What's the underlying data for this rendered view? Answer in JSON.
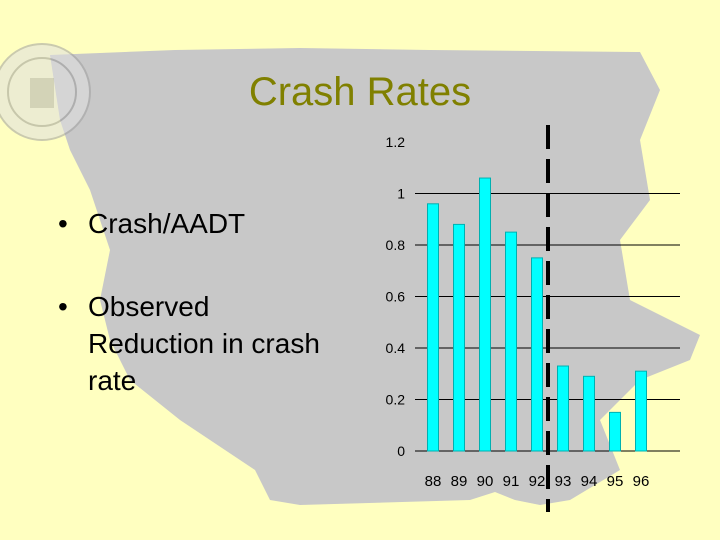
{
  "slide": {
    "title": "Crash Rates",
    "bullet_char": "•",
    "bullets": [
      "Crash/AADT",
      "Observed Reduction in crash rate"
    ]
  },
  "colors": {
    "background": "#FFFFC0",
    "map": "#C8C8C8",
    "title": "#808000",
    "bar_fill": "#00FFFF",
    "bar_stroke": "#00B0B0",
    "grid": "#000000",
    "divider": "#000000"
  },
  "chart_data": {
    "type": "bar",
    "title": "",
    "xlabel": "",
    "ylabel": "",
    "categories": [
      "88",
      "89",
      "90",
      "91",
      "92",
      "93",
      "94",
      "95",
      "96"
    ],
    "values": [
      0.96,
      0.88,
      1.06,
      0.85,
      0.75,
      0.33,
      0.29,
      0.15,
      0.31
    ],
    "ylim": [
      0,
      1.2
    ],
    "yticks": [
      "0",
      "0.2",
      "0.4",
      "0.6",
      "0.8",
      "1",
      "1.2"
    ],
    "gridlines": [
      0,
      0.2,
      0.4,
      0.6,
      0.8,
      1.0
    ],
    "divider_after_category": "92"
  }
}
